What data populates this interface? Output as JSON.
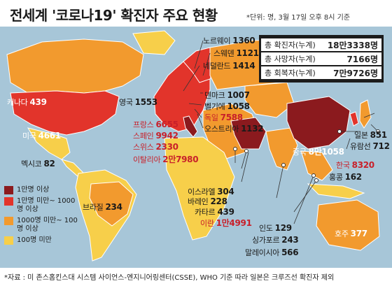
{
  "title": "전세계 '코로나19' 확진자 주요 현황",
  "unit_note": "*단위: 명, 3월 17일 오후 8시 기준",
  "colors": {
    "ocean": "#a7c6d8",
    "level1": "#8b1a1e",
    "level2": "#e2342b",
    "level3": "#f29a2e",
    "level4": "#f7cf4a"
  },
  "summary": [
    {
      "label": "총 확진자(누계)",
      "value": "18만3338명"
    },
    {
      "label": "총 사망자(누계)",
      "value": "7166명"
    },
    {
      "label": "총 회복자(누계)",
      "value": "7만9726명"
    }
  ],
  "countries": {
    "norway": {
      "name": "노르웨이",
      "value": "1360"
    },
    "sweden": {
      "name": "스웨덴",
      "value": "1121"
    },
    "netherlands": {
      "name": "네덜란드",
      "value": "1414"
    },
    "uk": {
      "name": "영국",
      "value": "1553"
    },
    "denmark": {
      "name": "덴마크",
      "value": "1007"
    },
    "belgium": {
      "name": "벨기에",
      "value": "1058"
    },
    "germany": {
      "name": "독일",
      "value": "7588"
    },
    "austria": {
      "name": "오스트리아",
      "value": "1132"
    },
    "france": {
      "name": "프랑스",
      "value": "6655"
    },
    "spain": {
      "name": "스페인",
      "value": "9942"
    },
    "switzerland": {
      "name": "스위스",
      "value": "2330"
    },
    "italy": {
      "name": "이탈리아",
      "value": "2만7980"
    },
    "canada": {
      "name": "캐나다",
      "value": "439"
    },
    "usa": {
      "name": "미국",
      "value": "4661"
    },
    "mexico": {
      "name": "멕시코",
      "value": "82"
    },
    "brazil": {
      "name": "브라질",
      "value": "234"
    },
    "israel": {
      "name": "이스라엘",
      "value": "304"
    },
    "bahrain": {
      "name": "바레인",
      "value": "228"
    },
    "qatar": {
      "name": "카타르",
      "value": "439"
    },
    "iran": {
      "name": "이란",
      "value": "1만4991"
    },
    "india": {
      "name": "인도",
      "value": "129"
    },
    "singapore": {
      "name": "싱가포르",
      "value": "243"
    },
    "malaysia": {
      "name": "말레이시아",
      "value": "566"
    },
    "china": {
      "name": "중국",
      "value": "8만1058"
    },
    "japan": {
      "name": "일본",
      "value": "851"
    },
    "cruise": {
      "name": "유람선",
      "value": "712"
    },
    "korea": {
      "name": "한국",
      "value": "8320"
    },
    "hongkong": {
      "name": "홍콩",
      "value": "162"
    },
    "australia": {
      "name": "호주",
      "value": "377"
    }
  },
  "legend": [
    {
      "label": "1만명 이상",
      "color": "#8b1a1e"
    },
    {
      "label": "1만명 미만~ 1000명 이상",
      "color": "#e2342b"
    },
    {
      "label": "1000명 미만~ 100명 이상",
      "color": "#f29a2e"
    },
    {
      "label": "100명 미만",
      "color": "#f7cf4a"
    }
  ],
  "footer": "*자료 : 미 존스홉킨스대 시스템 사이언스-엔지니어링센터(CSSE), WHO 기준 따라 일본은 크루즈선 확진자 제외"
}
